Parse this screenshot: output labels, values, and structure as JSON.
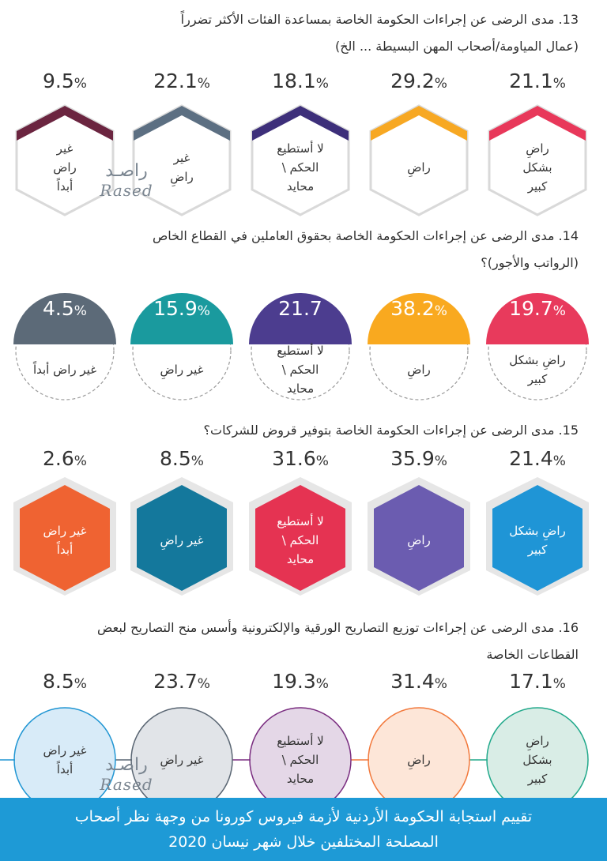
{
  "labels": {
    "very_satisfied": "راضٍ بشكل كبير",
    "satisfied": "راضٍ",
    "cant_judge": "لا أستطيع الحكم \\ محايد",
    "dissatisfied": "غير راضٍ",
    "not_at_all": "غير راض أبداً"
  },
  "watermark": {
    "arabic": "راصـد",
    "english": "Rased"
  },
  "footer": {
    "line1": "تقييم استجابة الحكومة الأردنية لأزمة فيروس كورونا من وجهة نظر أصحاب",
    "line2": "المصلحة المختلفين خلال شهر نيسان 2020"
  },
  "chart_data": [
    {
      "type": "table",
      "title_line1": "13. مدى الرضى عن إجراءات الحكومة الخاصة بمساعدة الفئات الأكثر تضرراً",
      "title_line2": "(عمال المياومة/أصحاب المهن البسيطة ... الخ)",
      "categories": [
        "راضٍ بشكل كبير",
        "راضٍ",
        "لا أستطيع الحكم \\ محايد",
        "غير راضٍ",
        "غير راض أبداً"
      ],
      "values": [
        21.1,
        29.2,
        18.1,
        22.1,
        9.5
      ],
      "value_labels": [
        "21.1",
        "29.2",
        "18.1",
        "22.1",
        "9.5"
      ],
      "colors": [
        "#e8385a",
        "#f7a823",
        "#3d2f7a",
        "#5c6f82",
        "#6b2540"
      ]
    },
    {
      "type": "table",
      "title_line1": "14. مدى الرضى عن إجراءات الحكومة الخاصة بحقوق العاملين في القطاع الخاص",
      "title_line2": "(الرواتب والأجور)؟",
      "categories": [
        "راضٍ بشكل كبير",
        "راضٍ",
        "لا أستطيع الحكم \\ محايد",
        "غير راضٍ",
        "غير راض أبداً"
      ],
      "values": [
        19.7,
        38.2,
        21.7,
        15.9,
        4.5
      ],
      "value_labels": [
        "19.7",
        "38.2",
        "21.7",
        "15.9",
        "4.5"
      ],
      "colors": [
        "#e83a5c",
        "#f9a91f",
        "#4c3d8f",
        "#1a9a9e",
        "#5c6a78"
      ]
    },
    {
      "type": "table",
      "title_line1": "15. مدى الرضى عن إجراءات الحكومة الخاصة بتوفير قروض للشركات؟",
      "title_line2": "",
      "categories": [
        "راضٍ بشكل كبير",
        "راضٍ",
        "لا أستطيع الحكم \\ محايد",
        "غير راضٍ",
        "غير راض أبداً"
      ],
      "values": [
        21.4,
        35.9,
        31.6,
        8.5,
        2.6
      ],
      "value_labels": [
        "21.4",
        "35.9",
        "31.6",
        "8.5",
        "2.6"
      ],
      "colors": [
        "#1f95d6",
        "#6b5cb0",
        "#e53352",
        "#14789c",
        "#ef6332"
      ]
    },
    {
      "type": "table",
      "title_line1": "16. مدى الرضى عن إجراءات توزيع التصاريح الورقية والإلكترونية وأسس منح التصاريح لبعض",
      "title_line2": "القطاعات الخاصة",
      "categories": [
        "راضٍ بشكل كبير",
        "راضٍ",
        "لا أستطيع الحكم \\ محايد",
        "غير راضٍ",
        "غير راض أبداً"
      ],
      "values": [
        17.1,
        31.4,
        19.3,
        23.7,
        8.5
      ],
      "value_labels": [
        "17.1",
        "31.4",
        "19.3",
        "23.7",
        "8.5"
      ],
      "colors": [
        "#22a98b",
        "#f2793c",
        "#7a2d80",
        "#5a6673",
        "#2196d3"
      ],
      "fills": [
        "#d9ede6",
        "#fde6d8",
        "#e4d7e7",
        "#e1e4e8",
        "#d8ebf8"
      ]
    }
  ]
}
